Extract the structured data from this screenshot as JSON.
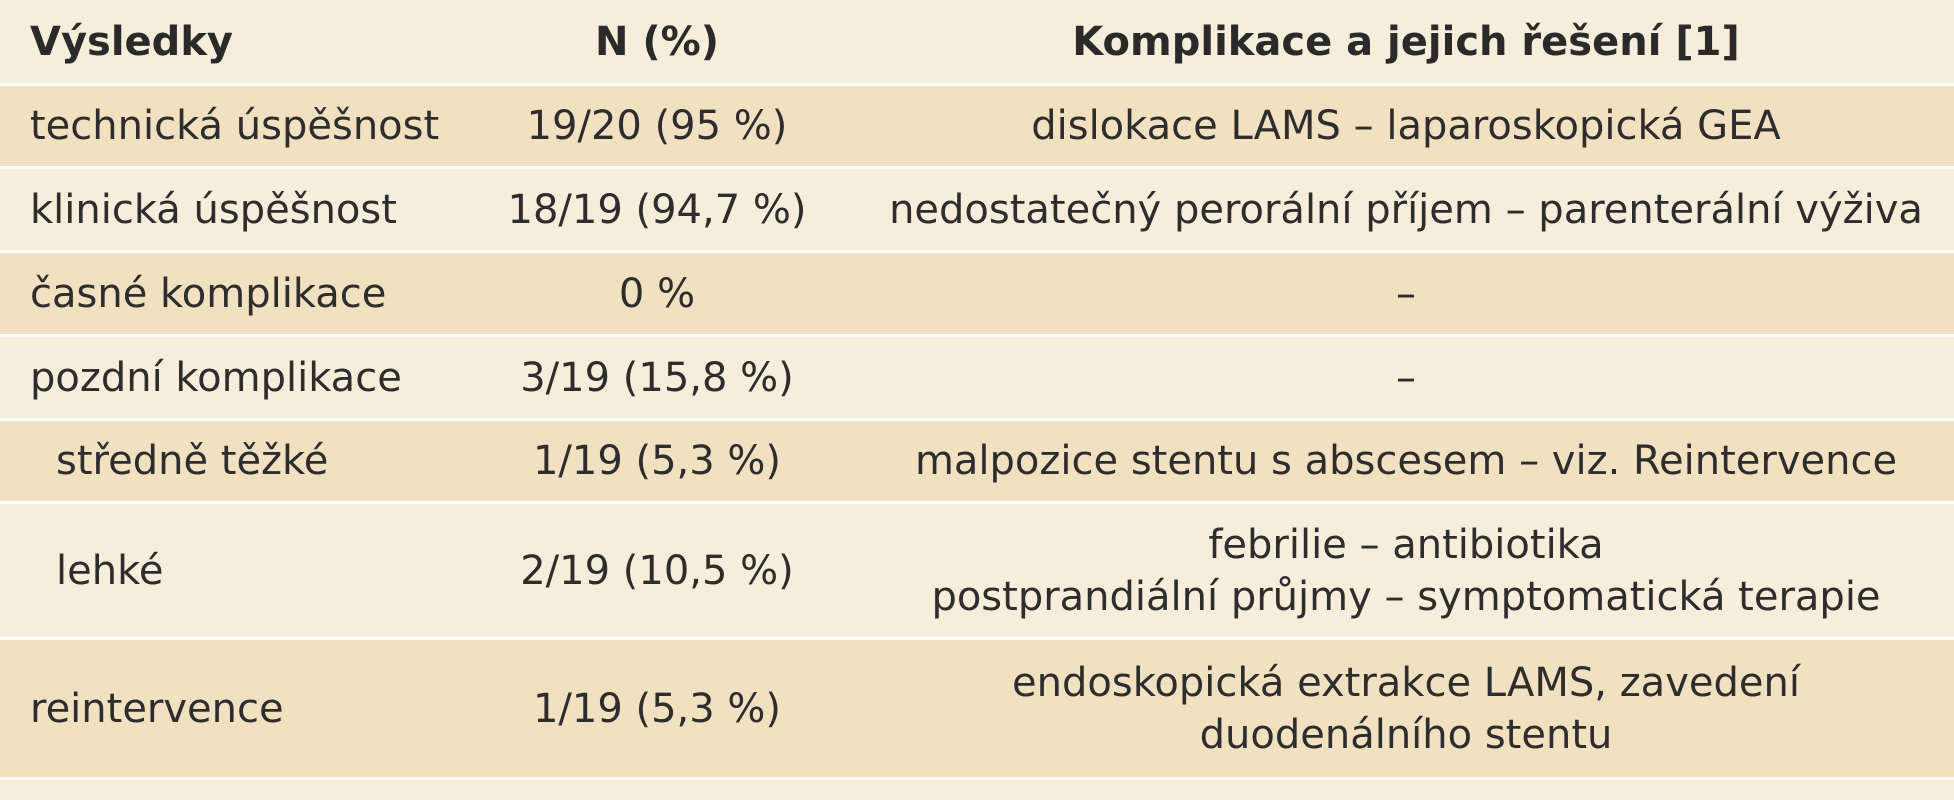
{
  "table": {
    "headers": [
      "Výsledky",
      "N (%)",
      "Komplikace a jejich řešení [1]"
    ],
    "rows": [
      {
        "result": "technická úspěšnost",
        "n": "19/20 (95 %)",
        "complications": [
          "dislokace LAMS – laparoskopická GEA"
        ]
      },
      {
        "result": "klinická úspěšnost",
        "n": "18/19 (94,7 %)",
        "complications": [
          "nedostatečný perorální příjem – parenterální výživa"
        ]
      },
      {
        "result": "časné komplikace",
        "n": "0 %",
        "complications": [
          "–"
        ]
      },
      {
        "result": "pozdní komplikace",
        "n": "3/19 (15,8 %)",
        "complications": [
          "–"
        ]
      },
      {
        "result": "středně těžké",
        "n": "1/19 (5,3 %)",
        "complications": [
          "malpozice stentu s abscesem – viz. Reintervence"
        ]
      },
      {
        "result": "lehké",
        "n": "2/19 (10,5 %)",
        "complications": [
          "febrilie – antibiotika",
          "postprandiální průjmy – symptomatická terapie"
        ]
      },
      {
        "result": "reintervence",
        "n": "1/19 (5,3 %)",
        "complications": [
          "endoskopická extrakce LAMS, zavedení",
          "duodenálního stentu"
        ]
      }
    ]
  }
}
